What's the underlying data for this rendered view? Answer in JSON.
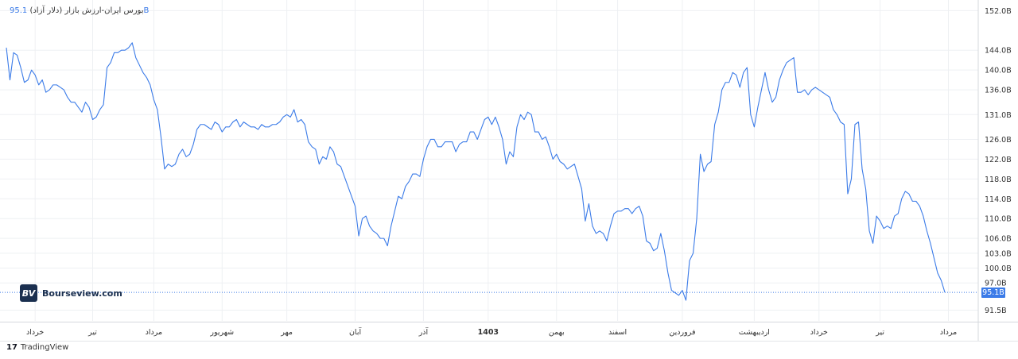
{
  "title": "بورس ایران-ارزش بازار (دلار آزاد)",
  "last_value_label": "95.1B",
  "brand": {
    "logo_text": "BV",
    "site": "Bourseview.com"
  },
  "footer": {
    "logo_mark": "17",
    "text": "TradingView"
  },
  "chart_data": {
    "type": "line",
    "title": "بورس ایران-ارزش بازار (دلار آزاد)",
    "unit": "B",
    "y_ticks": [
      {
        "label": "152.0B",
        "value": 152.0
      },
      {
        "label": "144.0B",
        "value": 144.0
      },
      {
        "label": "140.0B",
        "value": 140.0
      },
      {
        "label": "136.0B",
        "value": 136.0
      },
      {
        "label": "131.0B",
        "value": 131.0
      },
      {
        "label": "126.0B",
        "value": 126.0
      },
      {
        "label": "122.0B",
        "value": 122.0
      },
      {
        "label": "118.0B",
        "value": 118.0
      },
      {
        "label": "114.0B",
        "value": 114.0
      },
      {
        "label": "110.0B",
        "value": 110.0
      },
      {
        "label": "106.0B",
        "value": 106.0
      },
      {
        "label": "103.0B",
        "value": 103.0
      },
      {
        "label": "100.0B",
        "value": 100.0
      },
      {
        "label": "97.0B",
        "value": 97.0
      },
      {
        "label": "91.5B",
        "value": 91.5
      }
    ],
    "ylim": [
      89.5,
      153.5
    ],
    "x_ticks": [
      {
        "label": "خرداد",
        "index": 8,
        "bold": false
      },
      {
        "label": "تیر",
        "index": 24,
        "bold": false
      },
      {
        "label": "مرداد",
        "index": 41,
        "bold": false
      },
      {
        "label": "شهریور",
        "index": 60,
        "bold": false
      },
      {
        "label": "مهر",
        "index": 78,
        "bold": false
      },
      {
        "label": "آبان",
        "index": 97,
        "bold": false
      },
      {
        "label": "آذر",
        "index": 116,
        "bold": false
      },
      {
        "label": "1403",
        "index": 134,
        "bold": true
      },
      {
        "label": "بهمن",
        "index": 153,
        "bold": false
      },
      {
        "label": "اسفند",
        "index": 170,
        "bold": false
      },
      {
        "label": "فروردین",
        "index": 188,
        "bold": false
      },
      {
        "label": "اردیبهشت",
        "index": 208,
        "bold": false
      },
      {
        "label": "خرداد",
        "index": 226,
        "bold": false
      },
      {
        "label": "تیر",
        "index": 243,
        "bold": false
      },
      {
        "label": "مرداد",
        "index": 262,
        "bold": false
      }
    ],
    "last_value": 95.1,
    "series": [
      {
        "color": "#3b7be8",
        "values": [
          144.5,
          138.0,
          143.5,
          143.0,
          140.5,
          137.5,
          138.0,
          140.0,
          139.0,
          137.0,
          138.0,
          135.5,
          136.0,
          137.0,
          137.0,
          136.5,
          136.0,
          134.5,
          133.5,
          133.5,
          132.5,
          131.5,
          133.5,
          132.5,
          130.0,
          130.5,
          132.0,
          133.0,
          140.5,
          141.5,
          143.5,
          143.5,
          144.0,
          144.0,
          144.5,
          145.5,
          142.5,
          141.0,
          139.5,
          138.5,
          137.0,
          134.0,
          132.0,
          126.5,
          120.0,
          121.0,
          120.5,
          121.0,
          123.0,
          124.0,
          122.5,
          123.0,
          125.0,
          128.0,
          129.0,
          129.0,
          128.5,
          128.0,
          129.5,
          129.0,
          127.5,
          128.5,
          128.5,
          129.5,
          130.0,
          128.5,
          129.5,
          129.0,
          128.5,
          128.5,
          128.0,
          129.0,
          128.5,
          128.5,
          129.0,
          129.0,
          129.5,
          130.5,
          131.0,
          130.5,
          132.0,
          129.5,
          130.0,
          129.0,
          125.5,
          124.5,
          124.0,
          121.0,
          122.5,
          122.0,
          124.5,
          123.5,
          121.0,
          120.5,
          118.5,
          116.5,
          114.5,
          112.5,
          106.5,
          110.0,
          110.5,
          108.5,
          107.5,
          107.0,
          106.0,
          106.0,
          104.5,
          108.5,
          111.5,
          114.5,
          114.0,
          116.5,
          117.5,
          119.0,
          119.0,
          118.5,
          122.0,
          124.5,
          126.0,
          126.0,
          124.5,
          124.5,
          125.5,
          125.5,
          125.5,
          123.5,
          125.0,
          125.5,
          125.5,
          127.5,
          127.5,
          126.0,
          128.0,
          130.0,
          130.5,
          129.0,
          130.5,
          128.5,
          126.0,
          121.0,
          123.5,
          122.5,
          128.5,
          131.0,
          130.0,
          131.5,
          131.0,
          127.5,
          127.5,
          126.0,
          126.5,
          124.5,
          122.0,
          123.0,
          121.5,
          121.0,
          120.0,
          120.5,
          121.0,
          118.5,
          116.0,
          109.5,
          113.0,
          108.5,
          107.0,
          107.5,
          107.0,
          105.5,
          108.5,
          111.0,
          111.5,
          111.5,
          112.0,
          112.0,
          111.0,
          112.0,
          112.5,
          110.5,
          105.5,
          105.0,
          103.5,
          104.0,
          107.0,
          103.5,
          99.0,
          95.5,
          95.0,
          94.5,
          95.5,
          93.5,
          101.5,
          103.0,
          110.0,
          123.0,
          119.5,
          121.0,
          121.5,
          129.0,
          131.5,
          136.0,
          137.5,
          137.5,
          139.5,
          139.0,
          136.5,
          139.5,
          140.5,
          131.0,
          128.5,
          132.5,
          136.0,
          139.5,
          136.0,
          133.5,
          134.5,
          138.0,
          140.0,
          141.5,
          142.0,
          142.5,
          135.5,
          135.5,
          136.0,
          135.0,
          136.0,
          136.5,
          136.0,
          135.5,
          135.0,
          134.5,
          132.0,
          131.0,
          129.5,
          129.0,
          115.0,
          118.0,
          129.0,
          129.5,
          120.0,
          116.0,
          107.5,
          105.0,
          110.5,
          109.5,
          108.0,
          108.5,
          108.0,
          110.5,
          111.0,
          114.0,
          115.5,
          115.0,
          113.5,
          113.5,
          112.5,
          110.5,
          107.5,
          105.0,
          102.0,
          99.0,
          97.5,
          95.1
        ]
      }
    ]
  }
}
